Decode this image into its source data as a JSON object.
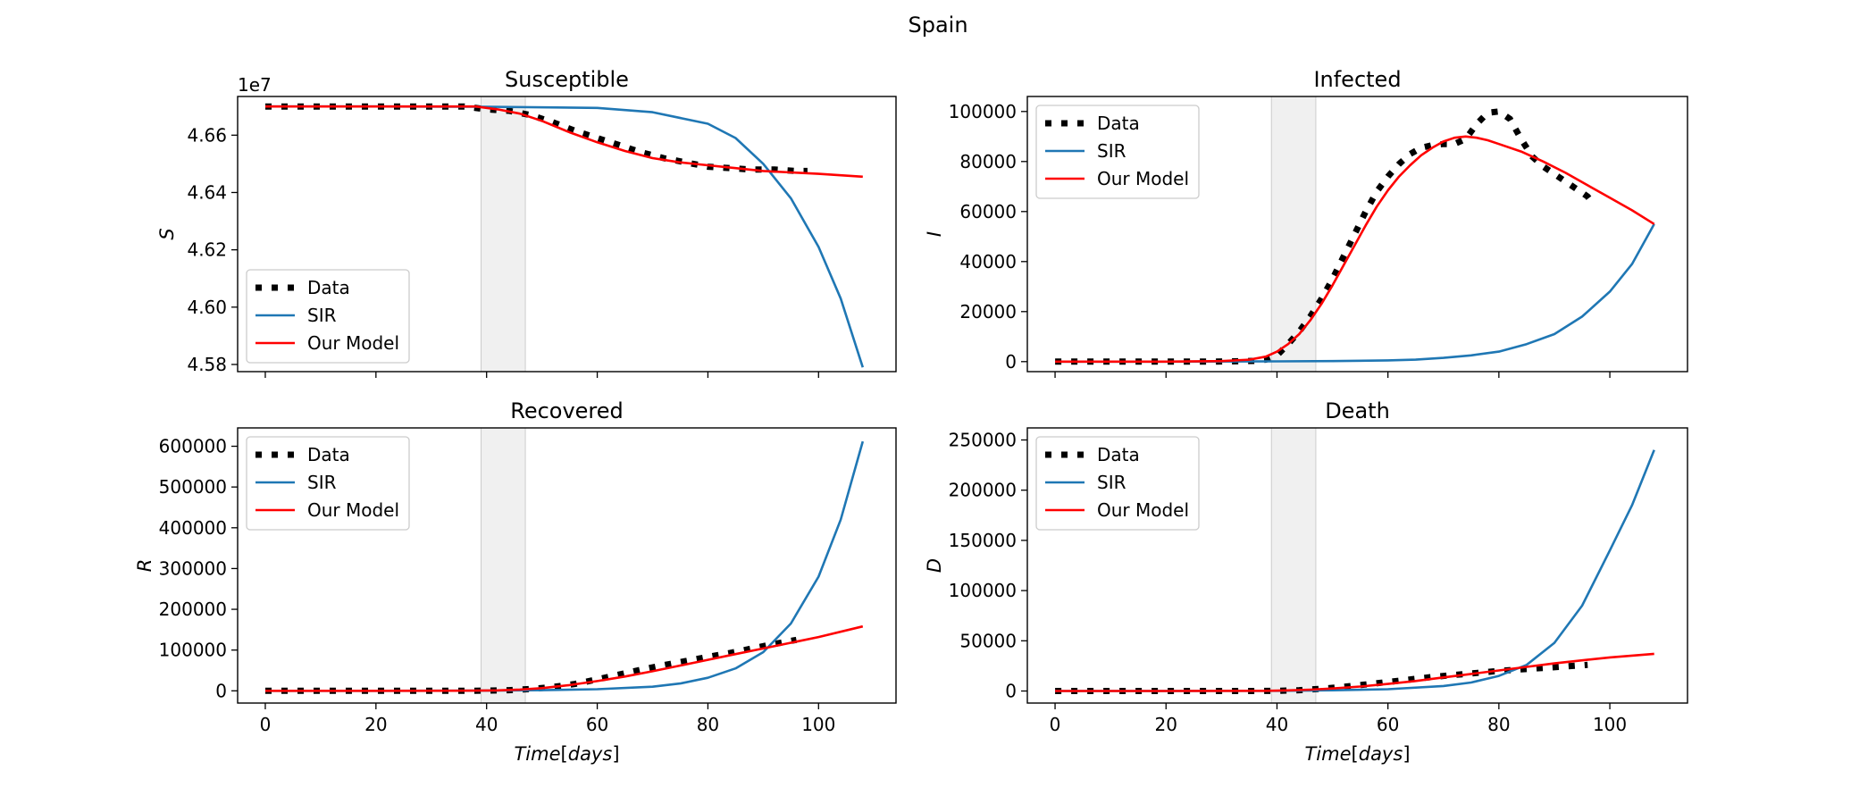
{
  "figure": {
    "title": "Spain"
  },
  "legend_labels": [
    "Data",
    "SIR",
    "Our Model"
  ],
  "colors": {
    "data": "#000000",
    "sir": "#1f77b4",
    "model": "#ff0000",
    "shade": "#e6e6e6"
  },
  "chart_data": [
    {
      "type": "line",
      "title": "Susceptible",
      "ylabel": "S",
      "xlabel": "",
      "offset_text": "1e7",
      "xlim": [
        -5,
        114
      ],
      "ylim": [
        4.5775,
        4.6735
      ],
      "xticks": [
        0,
        20,
        40,
        60,
        80,
        100
      ],
      "show_xticklabels": false,
      "yticks": [
        4.58,
        4.6,
        4.62,
        4.64,
        4.66
      ],
      "ytick_labels": [
        "4.58",
        "4.60",
        "4.62",
        "4.64",
        "4.66"
      ],
      "shaded_x": [
        39,
        47
      ],
      "legend_loc": "lower left",
      "series": [
        {
          "name": "Data",
          "style": "dotted",
          "x": [
            0,
            4,
            8,
            12,
            16,
            20,
            24,
            28,
            32,
            36,
            40,
            44,
            48,
            52,
            56,
            60,
            64,
            68,
            72,
            76,
            80,
            84,
            88,
            92,
            96,
            98
          ],
          "y": [
            4.67,
            4.67,
            4.67,
            4.67,
            4.67,
            4.67,
            4.67,
            4.67,
            4.67,
            4.67,
            4.669,
            4.6685,
            4.667,
            4.6645,
            4.6615,
            4.659,
            4.6565,
            4.654,
            4.652,
            4.6505,
            4.649,
            4.6485,
            4.648,
            4.648,
            4.6475,
            4.6475
          ]
        },
        {
          "name": "SIR",
          "style": "solid",
          "x": [
            0,
            20,
            40,
            60,
            70,
            80,
            85,
            90,
            95,
            100,
            104,
            108
          ],
          "y": [
            4.67,
            4.67,
            4.6699,
            4.6695,
            4.668,
            4.664,
            4.659,
            4.65,
            4.638,
            4.621,
            4.603,
            4.579
          ]
        },
        {
          "name": "Our Model",
          "style": "solid",
          "x": [
            0,
            20,
            38,
            42,
            46,
            50,
            55,
            60,
            65,
            70,
            75,
            80,
            85,
            90,
            95,
            100,
            108
          ],
          "y": [
            4.67,
            4.67,
            4.67,
            4.669,
            4.6675,
            4.665,
            4.661,
            4.6575,
            4.6545,
            4.652,
            4.6505,
            4.6495,
            4.6485,
            4.6475,
            4.647,
            4.6465,
            4.6455
          ]
        }
      ]
    },
    {
      "type": "line",
      "title": "Infected",
      "ylabel": "I",
      "xlabel": "",
      "xlim": [
        -5,
        114
      ],
      "ylim": [
        -4000,
        106000
      ],
      "xticks": [
        0,
        20,
        40,
        60,
        80,
        100
      ],
      "show_xticklabels": false,
      "yticks": [
        0,
        20000,
        40000,
        60000,
        80000,
        100000
      ],
      "ytick_labels": [
        "0",
        "20000",
        "40000",
        "60000",
        "80000",
        "100000"
      ],
      "shaded_x": [
        39,
        47
      ],
      "legend_loc": "upper left",
      "series": [
        {
          "name": "Data",
          "style": "dotted",
          "x": [
            0,
            4,
            8,
            12,
            16,
            20,
            24,
            28,
            32,
            36,
            38,
            40,
            42,
            44,
            46,
            48,
            50,
            52,
            54,
            56,
            58,
            60,
            62,
            64,
            66,
            68,
            70,
            72,
            74,
            76,
            78,
            80,
            82,
            84,
            86,
            88,
            90,
            92,
            94,
            96,
            97
          ],
          "y": [
            0,
            0,
            0,
            0,
            0,
            0,
            0,
            0,
            100,
            300,
            800,
            2500,
            7000,
            12000,
            18000,
            25000,
            33000,
            42000,
            51000,
            60000,
            68000,
            74000,
            79000,
            83000,
            85500,
            86500,
            87000,
            87000,
            89000,
            95000,
            99500,
            100000,
            97000,
            89000,
            82000,
            78000,
            75000,
            72000,
            69000,
            66000,
            63000
          ]
        },
        {
          "name": "SIR",
          "style": "solid",
          "x": [
            0,
            20,
            40,
            50,
            60,
            65,
            70,
            75,
            80,
            85,
            90,
            95,
            100,
            104,
            108
          ],
          "y": [
            0,
            0,
            100,
            200,
            500,
            800,
            1500,
            2500,
            4000,
            7000,
            11000,
            18000,
            28000,
            39000,
            55000
          ]
        },
        {
          "name": "Our Model",
          "style": "solid",
          "x": [
            0,
            20,
            30,
            35,
            38,
            40,
            42,
            44,
            46,
            48,
            50,
            52,
            54,
            56,
            58,
            60,
            62,
            64,
            66,
            68,
            70,
            72,
            74,
            76,
            78,
            80,
            84,
            88,
            92,
            96,
            100,
            104,
            108
          ],
          "y": [
            0,
            0,
            200,
            800,
            2000,
            4000,
            7000,
            11000,
            16500,
            23000,
            30500,
            38500,
            46500,
            54500,
            62000,
            68500,
            74000,
            78500,
            82500,
            85500,
            88000,
            89500,
            90000,
            89500,
            88500,
            87000,
            84000,
            80000,
            75500,
            70500,
            65500,
            60500,
            55000
          ]
        }
      ]
    },
    {
      "type": "line",
      "title": "Recovered",
      "ylabel": "R",
      "xlabel": "Time[days]",
      "xlim": [
        -5,
        114
      ],
      "ylim": [
        -30000,
        645000
      ],
      "xticks": [
        0,
        20,
        40,
        60,
        80,
        100
      ],
      "show_xticklabels": true,
      "yticks": [
        0,
        100000,
        200000,
        300000,
        400000,
        500000,
        600000
      ],
      "ytick_labels": [
        "0",
        "100000",
        "200000",
        "300000",
        "400000",
        "500000",
        "600000"
      ],
      "shaded_x": [
        39,
        47
      ],
      "legend_loc": "upper left",
      "series": [
        {
          "name": "Data",
          "style": "dotted",
          "x": [
            0,
            4,
            8,
            12,
            16,
            20,
            24,
            28,
            32,
            36,
            40,
            44,
            48,
            52,
            56,
            60,
            64,
            68,
            72,
            76,
            80,
            84,
            88,
            92,
            96
          ],
          "y": [
            0,
            0,
            0,
            0,
            0,
            0,
            0,
            0,
            0,
            0,
            500,
            1500,
            4500,
            9500,
            17000,
            28000,
            40000,
            52000,
            63000,
            73000,
            83000,
            93000,
            104000,
            115000,
            125000
          ]
        },
        {
          "name": "SIR",
          "style": "solid",
          "x": [
            0,
            20,
            40,
            50,
            60,
            70,
            75,
            80,
            85,
            90,
            95,
            100,
            104,
            108
          ],
          "y": [
            0,
            0,
            500,
            1500,
            4000,
            10000,
            18000,
            32000,
            55000,
            95000,
            165000,
            280000,
            420000,
            612000
          ]
        },
        {
          "name": "Our Model",
          "style": "solid",
          "x": [
            0,
            20,
            38,
            42,
            46,
            50,
            55,
            60,
            65,
            70,
            75,
            80,
            85,
            90,
            95,
            100,
            108
          ],
          "y": [
            0,
            0,
            500,
            1200,
            3000,
            6500,
            14000,
            24000,
            35000,
            48000,
            62000,
            76000,
            90000,
            104000,
            118000,
            132000,
            158000
          ]
        }
      ]
    },
    {
      "type": "line",
      "title": "Death",
      "ylabel": "D",
      "xlabel": "Time[days]",
      "xlim": [
        -5,
        114
      ],
      "ylim": [
        -12000,
        262000
      ],
      "xticks": [
        0,
        20,
        40,
        60,
        80,
        100
      ],
      "show_xticklabels": true,
      "yticks": [
        0,
        50000,
        100000,
        150000,
        200000,
        250000
      ],
      "ytick_labels": [
        "0",
        "50000",
        "100000",
        "150000",
        "200000",
        "250000"
      ],
      "shaded_x": [
        39,
        47
      ],
      "legend_loc": "upper left",
      "series": [
        {
          "name": "Data",
          "style": "dotted",
          "x": [
            0,
            4,
            8,
            12,
            16,
            20,
            24,
            28,
            32,
            36,
            40,
            44,
            48,
            52,
            56,
            60,
            64,
            68,
            72,
            76,
            80,
            84,
            88,
            92,
            96
          ],
          "y": [
            0,
            0,
            0,
            0,
            0,
            0,
            0,
            0,
            0,
            0,
            200,
            800,
            2200,
            4200,
            6500,
            9000,
            11500,
            14000,
            16000,
            18000,
            20000,
            21500,
            23000,
            24500,
            26000
          ]
        },
        {
          "name": "SIR",
          "style": "solid",
          "x": [
            0,
            20,
            40,
            50,
            60,
            70,
            75,
            80,
            85,
            90,
            95,
            100,
            104,
            108
          ],
          "y": [
            0,
            0,
            200,
            700,
            1800,
            5000,
            8500,
            15000,
            26000,
            48000,
            85000,
            140000,
            185000,
            240000
          ]
        },
        {
          "name": "Our Model",
          "style": "solid",
          "x": [
            0,
            20,
            38,
            42,
            46,
            50,
            55,
            60,
            65,
            70,
            75,
            80,
            85,
            90,
            95,
            100,
            108
          ],
          "y": [
            0,
            0,
            200,
            600,
            1300,
            2500,
            4500,
            7000,
            10000,
            13500,
            17000,
            20500,
            24000,
            27500,
            30500,
            33500,
            37000
          ]
        }
      ]
    }
  ]
}
